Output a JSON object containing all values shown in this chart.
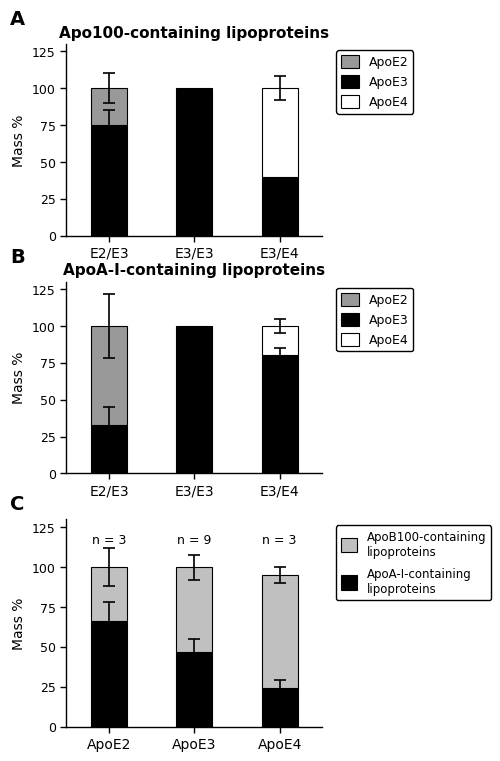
{
  "panel_A": {
    "title": "Apo100-containing lipoproteins",
    "categories": [
      "E2/E3",
      "E3/E3",
      "E3/E4"
    ],
    "ApoE2": [
      25,
      0,
      0
    ],
    "ApoE3": [
      75,
      100,
      40
    ],
    "ApoE4": [
      0,
      0,
      60
    ],
    "error_total": [
      10,
      0,
      8
    ],
    "error_E3": [
      10,
      0,
      0
    ],
    "ylabel": "Mass %",
    "ylim": [
      0,
      130
    ]
  },
  "panel_B": {
    "title": "ApoA-I-containing lipoproteins",
    "categories": [
      "E2/E3",
      "E3/E3",
      "E3/E4"
    ],
    "ApoE2": [
      67,
      0,
      0
    ],
    "ApoE3": [
      33,
      100,
      80
    ],
    "ApoE4": [
      0,
      0,
      20
    ],
    "error_total": [
      22,
      0,
      5
    ],
    "error_E3": [
      12,
      0,
      5
    ],
    "ylabel": "Mass %",
    "ylim": [
      0,
      130
    ]
  },
  "panel_C": {
    "categories": [
      "ApoE2",
      "ApoE3",
      "ApoE4"
    ],
    "n_labels": [
      "n = 3",
      "n = 9",
      "n = 3"
    ],
    "ApoAI": [
      66,
      47,
      24
    ],
    "ApoB100": [
      34,
      53,
      71
    ],
    "total": [
      100,
      100,
      95
    ],
    "error_total": [
      12,
      8,
      5
    ],
    "error_ApoAI": [
      12,
      8,
      5
    ],
    "ylabel": "Mass %",
    "ylim": [
      0,
      130
    ],
    "legend1": "ApoB100-containing\nlipoproteins",
    "legend2": "ApoA-I-containing\nlipoproteins"
  },
  "bar_width": 0.42
}
